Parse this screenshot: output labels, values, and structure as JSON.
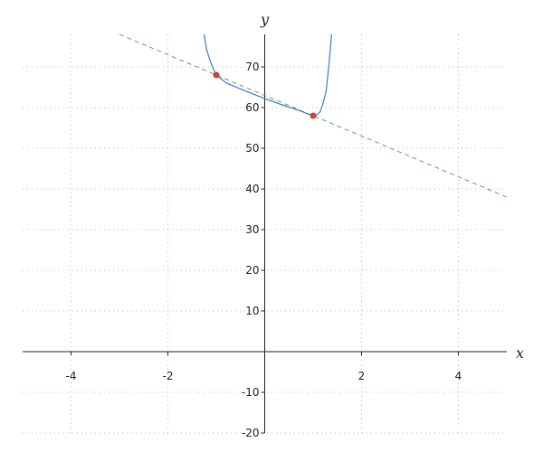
{
  "chart_data": {
    "type": "line",
    "xlabel": "x",
    "ylabel": "y",
    "xlim": [
      -5,
      5
    ],
    "ylim": [
      -20,
      78
    ],
    "xticks": [
      -4,
      -2,
      2,
      4
    ],
    "yticks": [
      -20,
      -10,
      10,
      20,
      30,
      40,
      50,
      60,
      70
    ],
    "grid": true,
    "series": [
      {
        "style": "solid",
        "color": "#3b7dc4",
        "x": [
          -1.25,
          -1.2,
          -1.13,
          -1.05,
          -1.0,
          -0.79,
          -0.4,
          0,
          0.4,
          0.71,
          0.9,
          1.0,
          1.08,
          1.14,
          1.2,
          1.27,
          1.33,
          1.38
        ],
        "y": [
          78,
          74.2,
          71.6,
          69.2,
          68,
          66,
          64.1,
          62.2,
          60.5,
          59.3,
          58.4,
          58,
          58.2,
          58.9,
          60.8,
          64.2,
          70.9,
          78
        ]
      },
      {
        "style": "dashed",
        "color": "#4a9a5a",
        "x": [
          -3,
          5
        ],
        "y": [
          78,
          38
        ]
      }
    ],
    "points": {
      "color": "#c8413b",
      "x": [
        -1,
        1
      ],
      "y": [
        68,
        58
      ]
    }
  }
}
